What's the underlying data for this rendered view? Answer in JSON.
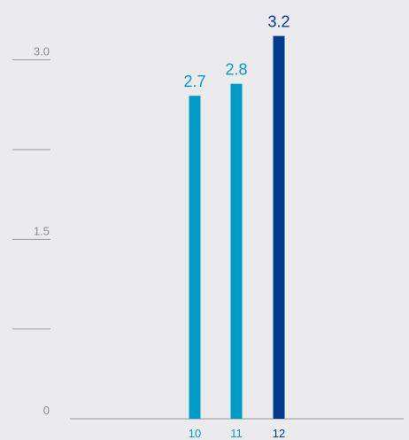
{
  "chart_data": {
    "type": "bar",
    "categories": [
      "10",
      "11",
      "12"
    ],
    "values": [
      2.7,
      2.8,
      3.2
    ],
    "value_labels": [
      "2.7",
      "2.8",
      "3.2"
    ],
    "ylim": [
      0,
      3.375
    ],
    "yticks": [
      {
        "value": 0,
        "label": "0"
      },
      {
        "value": 0.75,
        "label": ""
      },
      {
        "value": 1.5,
        "label": "1.5"
      },
      {
        "value": 2.25,
        "label": ""
      },
      {
        "value": 3.0,
        "label": "3.0"
      }
    ],
    "grid": false,
    "title": "",
    "xlabel": "",
    "ylabel": "",
    "colors": {
      "bar": "#009cc8",
      "bar_highlight": "#003b8e",
      "axis": "#9a9a9a",
      "tick": "#8a8a8a"
    },
    "highlight_category": "12"
  }
}
